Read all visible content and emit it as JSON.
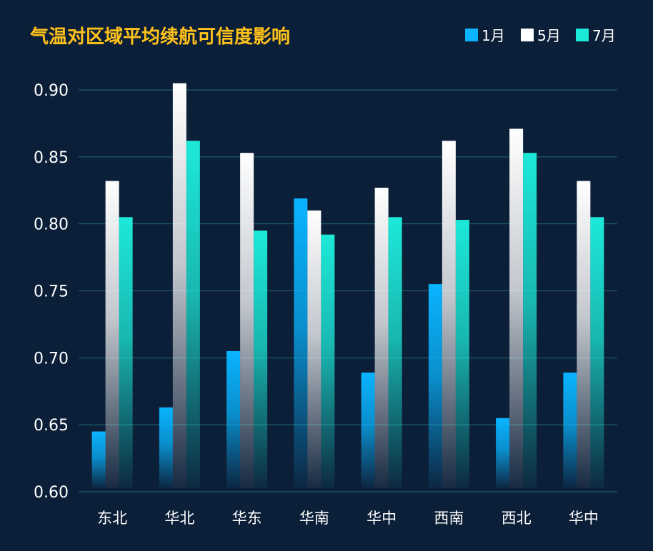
{
  "chart_data": {
    "type": "bar",
    "title": "气温对区域平均续航可信度影响",
    "categories": [
      "东北",
      "华北",
      "华东",
      "华南",
      "华中",
      "西南",
      "西北",
      "华中"
    ],
    "series": [
      {
        "name": "1月",
        "color": "#0ab4ff",
        "values": [
          0.645,
          0.663,
          0.705,
          0.819,
          0.689,
          0.755,
          0.655,
          0.689
        ]
      },
      {
        "name": "5月",
        "color": "#ffffff",
        "values": [
          0.832,
          0.905,
          0.853,
          0.81,
          0.827,
          0.862,
          0.871,
          0.832
        ]
      },
      {
        "name": "7月",
        "color": "#1de9d8",
        "values": [
          0.805,
          0.862,
          0.795,
          0.792,
          0.805,
          0.803,
          0.853,
          0.805
        ]
      }
    ],
    "yticks": [
      "0.60",
      "0.65",
      "0.70",
      "0.75",
      "0.80",
      "0.85",
      "0.90"
    ],
    "ylim": [
      0.6,
      0.9
    ],
    "xlabel": "",
    "ylabel": "",
    "grid": true,
    "legend_position": "top-right"
  },
  "colors": {
    "background": "#0c1f38",
    "title": "#ffc21a",
    "gridline": "#1f6b73",
    "text": "#ffffff"
  }
}
